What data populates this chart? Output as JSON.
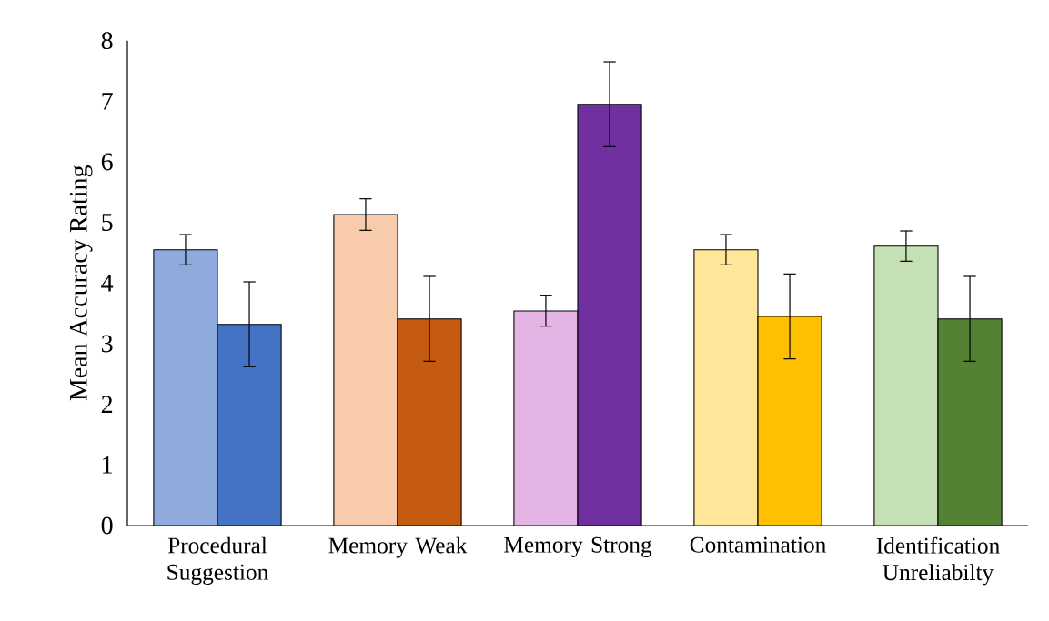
{
  "chart_data": {
    "type": "bar",
    "ylabel": "Mean Accuracy Rating",
    "categories": [
      "Procedural Suggestion",
      "Memory Weak",
      "Memory Strong",
      "Contamination",
      "Identification Unreliabilty"
    ],
    "series": [
      {
        "colors": [
          "#8faadc",
          "#f8cbad",
          "#e4b4e4",
          "#ffe699",
          "#c5e0b4"
        ],
        "values": [
          4.55,
          5.13,
          3.54,
          4.55,
          4.61
        ],
        "errors": [
          0.25,
          0.26,
          0.25,
          0.25,
          0.25
        ]
      },
      {
        "colors": [
          "#4472c4",
          "#c55a11",
          "#7030a0",
          "#ffc000",
          "#548235"
        ],
        "values": [
          3.32,
          3.41,
          6.95,
          3.45,
          3.41
        ],
        "errors": [
          0.7,
          0.7,
          0.7,
          0.7,
          0.7
        ]
      }
    ],
    "ylim": [
      0,
      8
    ],
    "yticks": [
      0,
      1,
      2,
      3,
      4,
      5,
      6,
      7,
      8
    ]
  }
}
